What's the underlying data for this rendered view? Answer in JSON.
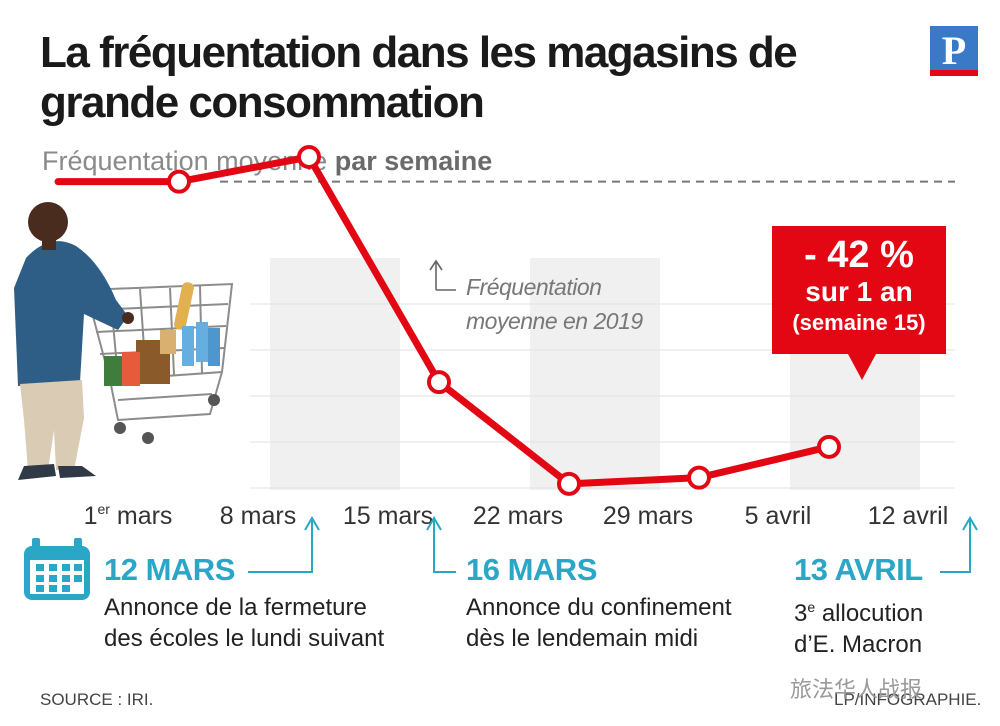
{
  "header": {
    "title": "La fréquentation dans les magasins de grande consommation",
    "subtitle_prefix": "Fréquentation moyenne ",
    "subtitle_bold": "par semaine",
    "logo_letter": "P"
  },
  "chart_data": {
    "type": "line",
    "title": "La fréquentation dans les magasins de grande consommation",
    "subtitle": "Fréquentation moyenne par semaine",
    "categories": [
      "1er mars",
      "8 mars",
      "15 mars",
      "22 mars",
      "29 mars",
      "5 avril",
      "12 avril"
    ],
    "x_labels": [
      {
        "main": "1",
        "sup": "er",
        "rest": " mars"
      },
      {
        "main": "8 mars",
        "sup": "",
        "rest": ""
      },
      {
        "main": "15 mars",
        "sup": "",
        "rest": ""
      },
      {
        "main": "22 mars",
        "sup": "",
        "rest": ""
      },
      {
        "main": "29 mars",
        "sup": "",
        "rest": ""
      },
      {
        "main": "5 avril",
        "sup": "",
        "rest": ""
      },
      {
        "main": "12 avril",
        "sup": "",
        "rest": ""
      }
    ],
    "reference": {
      "label_line1": "Fréquentation",
      "label_line2": "moyenne en 2019",
      "value": 100
    },
    "series": [
      {
        "values": [
          {
            "week": 0.3,
            "value": 100
          },
          {
            "week": 1.3,
            "value": 108
          },
          {
            "week": 2.3,
            "value": 35
          },
          {
            "week": 3.3,
            "value": 2
          },
          {
            "week": 4.3,
            "value": 4
          },
          {
            "week": 5.3,
            "value": 14
          }
        ]
      }
    ],
    "color": "#e30613",
    "annotation": {
      "line1": "- 42 %",
      "line2": "sur 1 an",
      "line3": "(semaine 15)"
    },
    "ylim": [
      0,
      120
    ]
  },
  "events": [
    {
      "date": "12 MARS",
      "line1": "Annonce de la fermeture",
      "line2": "des écoles le lundi suivant"
    },
    {
      "date": "16 MARS",
      "line1": "Annonce du confinement",
      "line2": "dès le lendemain midi"
    },
    {
      "date": "13 AVRIL",
      "line1_pre": "3",
      "line1_sup": "e",
      "line1_post": " allocution",
      "line2": "d’E. Macron"
    }
  ],
  "footer": {
    "source": "SOURCE : IRI.",
    "credit": "LP/INFOGRAPHIE.",
    "watermark": "旅法华人战报"
  },
  "colors": {
    "accent": "#2aa6c7",
    "line": "#e30613",
    "stripe": "#f0f0f0"
  }
}
